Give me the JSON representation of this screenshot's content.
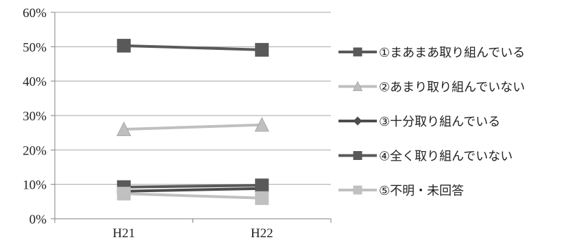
{
  "chart_data": {
    "type": "line",
    "categories": [
      "H21",
      "H22"
    ],
    "ylim": [
      0,
      60
    ],
    "yticks": [
      0,
      10,
      20,
      30,
      40,
      50,
      60
    ],
    "ytick_labels": [
      "0%",
      "10%",
      "20%",
      "30%",
      "40%",
      "50%",
      "60%"
    ],
    "grid": true,
    "legend_placement": "right",
    "series": [
      {
        "name": "①まあまあ取り組んでいる",
        "values": [
          50.3,
          49.1
        ],
        "color": "#595959",
        "marker": "square"
      },
      {
        "name": "②あまり取り組んでいない",
        "values": [
          26.0,
          27.3
        ],
        "color": "#bfbfbf",
        "marker": "triangle"
      },
      {
        "name": "③十分取り組んでいる",
        "values": [
          8.0,
          8.8
        ],
        "color": "#4d4d4d",
        "marker": "diamond"
      },
      {
        "name": "④全く取り組んでいない",
        "values": [
          9.2,
          9.7
        ],
        "color": "#595959",
        "marker": "square"
      },
      {
        "name": "⑤不明・未回答",
        "values": [
          7.3,
          6.0
        ],
        "color": "#c0c0c0",
        "marker": "square"
      }
    ]
  }
}
